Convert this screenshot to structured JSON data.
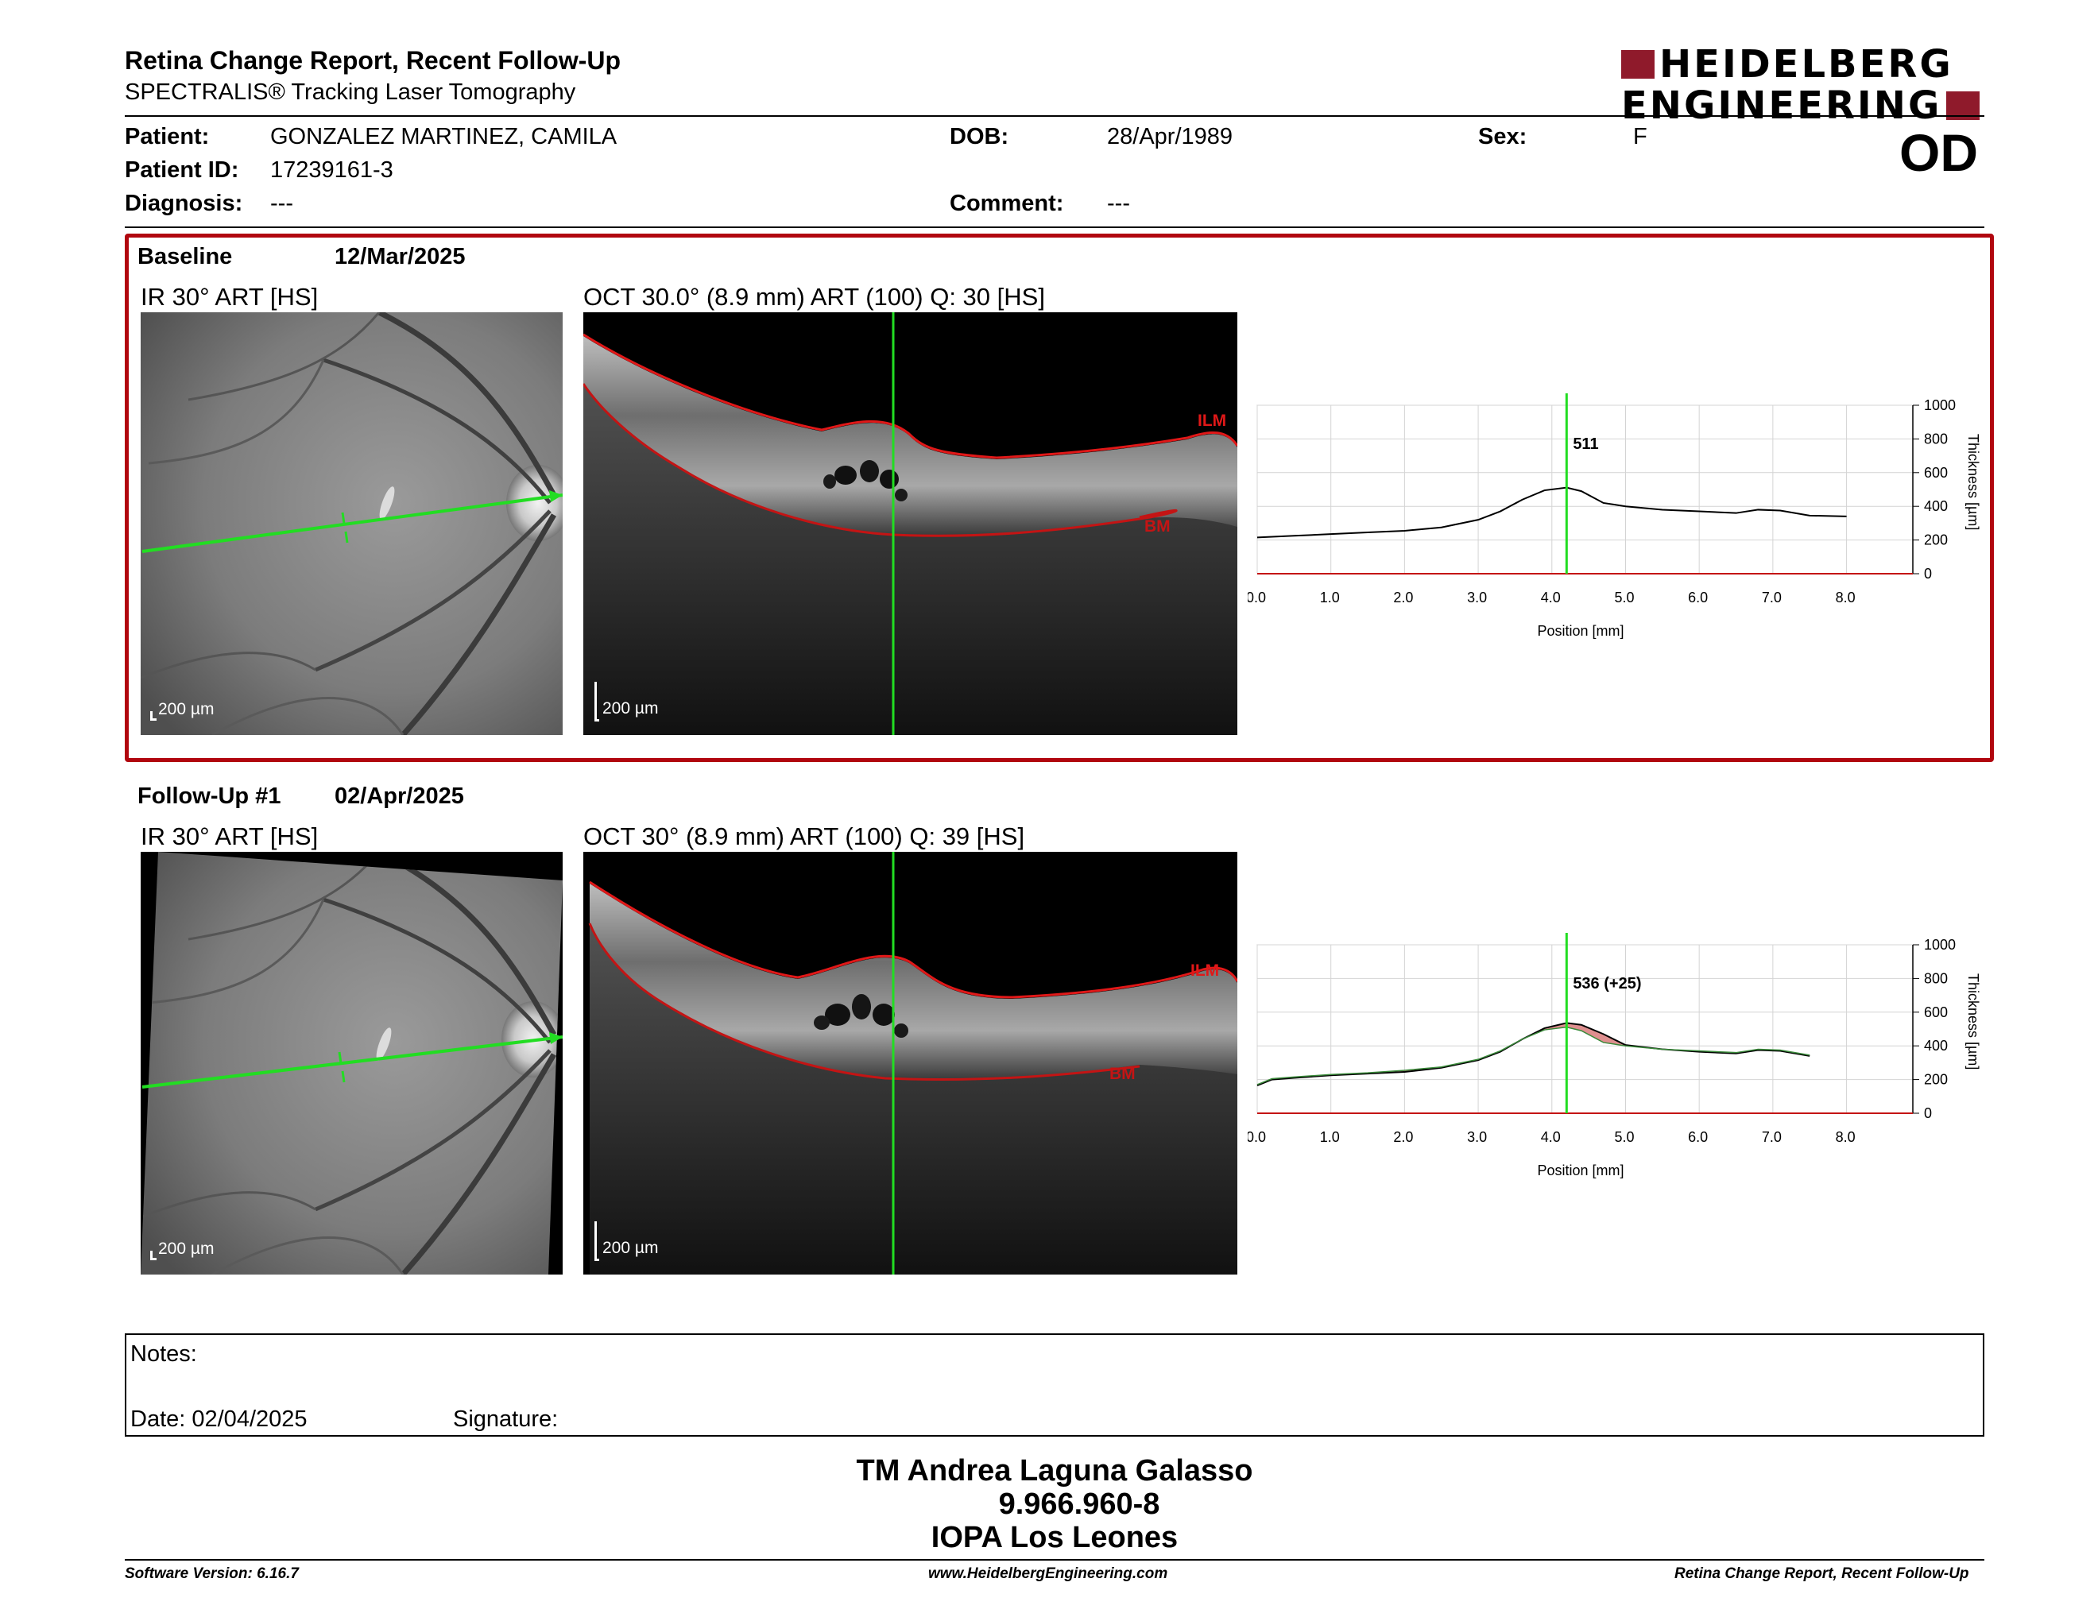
{
  "header": {
    "title": "Retina Change Report, Recent Follow-Up",
    "subtitle": "SPECTRALIS® Tracking Laser Tomography",
    "logo_line1": "HEIDELBERG",
    "logo_line2": "ENGINEERING",
    "brand_color": "#8f1a2b"
  },
  "patient": {
    "patient_label": "Patient:",
    "patient_value": "GONZALEZ MARTINEZ, CAMILA",
    "id_label": "Patient ID:",
    "id_value": "17239161-3",
    "diagnosis_label": "Diagnosis:",
    "diagnosis_value": "---",
    "dob_label": "DOB:",
    "dob_value": "28/Apr/1989",
    "comment_label": "Comment:",
    "comment_value": "---",
    "sex_label": "Sex:",
    "sex_value": "F",
    "eye": "OD"
  },
  "baseline": {
    "label": "Baseline",
    "date": "12/Mar/2025",
    "ir_caption": "IR 30° ART [HS]",
    "oct_caption": "OCT 30.0° (8.9 mm) ART (100) Q: 30 [HS]",
    "ir_scale": "200 µm",
    "oct_scale": "200 µm",
    "ilm_label": "ILM",
    "bm_label": "BM",
    "frame_color": "#b1060f"
  },
  "followup": {
    "label": "Follow-Up #1",
    "date": "02/Apr/2025",
    "ir_caption": "IR 30° ART [HS]",
    "oct_caption": "OCT 30° (8.9 mm) ART (100) Q: 39 [HS]",
    "ir_scale": "200 µm",
    "oct_scale": "200 µm",
    "ilm_label": "ILM",
    "bm_label": "BM"
  },
  "chart_data": [
    {
      "type": "line",
      "xlabel": "Position [mm]",
      "ylabel": "Thickness [µm]",
      "xlim": [
        0,
        8.9
      ],
      "ylim": [
        0,
        1000
      ],
      "x_ticks": [
        "0.0",
        "1.0",
        "2.0",
        "3.0",
        "4.0",
        "5.0",
        "6.0",
        "7.0",
        "8.0"
      ],
      "y_ticks": [
        "0",
        "200",
        "400",
        "600",
        "800",
        "1000"
      ],
      "grid": true,
      "marker_x": 4.2,
      "marker_label": "511",
      "series": [
        {
          "x": [
            0.0,
            0.5,
            1.0,
            1.5,
            2.0,
            2.5,
            3.0,
            3.3,
            3.6,
            3.9,
            4.2,
            4.4,
            4.7,
            5.0,
            5.5,
            6.0,
            6.5,
            6.8,
            7.1,
            7.5,
            8.0
          ],
          "y": [
            215,
            225,
            235,
            245,
            255,
            275,
            320,
            370,
            440,
            495,
            511,
            490,
            420,
            400,
            380,
            370,
            360,
            380,
            375,
            345,
            340
          ]
        }
      ]
    },
    {
      "type": "line",
      "xlabel": "Position [mm]",
      "ylabel": "Thickness [µm]",
      "xlim": [
        0,
        8.9
      ],
      "ylim": [
        0,
        1000
      ],
      "x_ticks": [
        "0.0",
        "1.0",
        "2.0",
        "3.0",
        "4.0",
        "5.0",
        "6.0",
        "7.0",
        "8.0"
      ],
      "y_ticks": [
        "0",
        "200",
        "400",
        "600",
        "800",
        "1000"
      ],
      "grid": true,
      "marker_x": 4.2,
      "marker_label": "536 (+25)",
      "series": [
        {
          "x": [
            0.0,
            0.2,
            0.5,
            1.0,
            1.5,
            2.0,
            2.5,
            3.0,
            3.3,
            3.6,
            3.9,
            4.2,
            4.4,
            4.7,
            5.0,
            5.5,
            6.0,
            6.5,
            6.8,
            7.1,
            7.5
          ],
          "y": [
            165,
            200,
            210,
            225,
            235,
            245,
            270,
            315,
            365,
            440,
            505,
            536,
            525,
            470,
            405,
            380,
            365,
            355,
            375,
            370,
            340
          ]
        },
        {
          "x": [
            0.0,
            0.2,
            0.5,
            1.0,
            1.5,
            2.0,
            2.5,
            3.0,
            3.3,
            3.6,
            3.9,
            4.2,
            4.4,
            4.7,
            5.0,
            5.5,
            6.0,
            6.5,
            6.8,
            7.1,
            7.5
          ],
          "y": [
            170,
            205,
            215,
            230,
            240,
            255,
            275,
            320,
            370,
            440,
            495,
            511,
            490,
            420,
            400,
            380,
            370,
            360,
            380,
            375,
            345
          ]
        }
      ]
    }
  ],
  "notes": {
    "notes_label": "Notes:",
    "date_label": "Date: 02/04/2025",
    "signature_label": "Signature:"
  },
  "signature": {
    "name": "TM Andrea Laguna Galasso",
    "id": "9.966.960-8",
    "institution": "IOPA Los Leones"
  },
  "footer": {
    "software": "Software Version: 6.16.7",
    "website": "www.HeidelbergEngineering.com",
    "report": "Retina Change Report, Recent Follow-Up"
  }
}
